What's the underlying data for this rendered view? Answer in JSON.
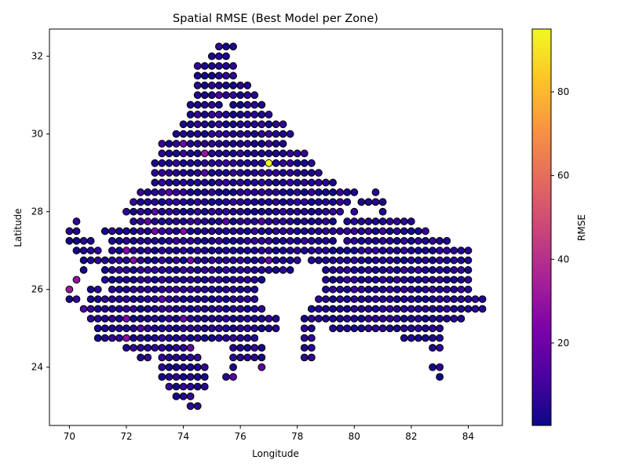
{
  "chart_data": {
    "type": "scatter",
    "title": "Spatial RMSE (Best Model per Zone)",
    "xlabel": "Longitude",
    "ylabel": "Latitude",
    "xlim": [
      69.3,
      85.2
    ],
    "ylim": [
      22.5,
      32.7
    ],
    "xticks": [
      70,
      72,
      74,
      76,
      78,
      80,
      82,
      84
    ],
    "yticks": [
      24,
      26,
      28,
      30,
      32
    ],
    "grid": false,
    "colorbar": {
      "label": "RMSE",
      "colormap": "plasma",
      "range": [
        0.3,
        95
      ],
      "ticks": [
        20,
        40,
        60,
        80
      ]
    },
    "grid_step_degrees": 0.25,
    "rows": [
      {
        "lat": 32.25,
        "segments": [
          [
            75.25,
            75.75
          ]
        ]
      },
      {
        "lat": 32.0,
        "segments": [
          [
            75.0,
            75.5
          ]
        ]
      },
      {
        "lat": 31.75,
        "segments": [
          [
            74.5,
            75.75
          ]
        ]
      },
      {
        "lat": 31.5,
        "segments": [
          [
            74.5,
            75.75
          ]
        ]
      },
      {
        "lat": 31.25,
        "segments": [
          [
            74.5,
            76.25
          ]
        ]
      },
      {
        "lat": 31.0,
        "segments": [
          [
            74.5,
            76.5
          ]
        ]
      },
      {
        "lat": 30.75,
        "segments": [
          [
            74.25,
            75.25
          ],
          [
            75.75,
            76.75
          ]
        ]
      },
      {
        "lat": 30.5,
        "segments": [
          [
            74.25,
            77.0
          ]
        ]
      },
      {
        "lat": 30.25,
        "segments": [
          [
            74.0,
            77.5
          ]
        ]
      },
      {
        "lat": 30.0,
        "segments": [
          [
            73.75,
            77.75
          ]
        ]
      },
      {
        "lat": 29.75,
        "segments": [
          [
            73.25,
            77.5
          ]
        ]
      },
      {
        "lat": 29.5,
        "segments": [
          [
            73.25,
            78.25
          ]
        ]
      },
      {
        "lat": 29.25,
        "segments": [
          [
            73.0,
            78.5
          ]
        ]
      },
      {
        "lat": 29.0,
        "segments": [
          [
            73.0,
            78.75
          ]
        ]
      },
      {
        "lat": 28.75,
        "segments": [
          [
            73.0,
            79.25
          ]
        ]
      },
      {
        "lat": 28.5,
        "segments": [
          [
            72.5,
            80.0
          ],
          [
            80.75,
            80.75
          ]
        ]
      },
      {
        "lat": 28.25,
        "segments": [
          [
            72.25,
            79.75
          ],
          [
            80.25,
            81.0
          ]
        ]
      },
      {
        "lat": 28.0,
        "segments": [
          [
            72.0,
            79.5
          ],
          [
            80.0,
            80.0
          ],
          [
            81.0,
            81.0
          ]
        ]
      },
      {
        "lat": 27.75,
        "segments": [
          [
            70.25,
            70.25
          ],
          [
            72.25,
            79.25
          ],
          [
            79.75,
            82.0
          ]
        ]
      },
      {
        "lat": 27.5,
        "segments": [
          [
            70.0,
            70.25
          ],
          [
            71.25,
            82.5
          ]
        ]
      },
      {
        "lat": 27.25,
        "segments": [
          [
            70.0,
            70.75
          ],
          [
            71.5,
            79.25
          ],
          [
            79.75,
            83.25
          ]
        ]
      },
      {
        "lat": 27.0,
        "segments": [
          [
            70.25,
            71.0
          ],
          [
            71.5,
            84.0
          ]
        ]
      },
      {
        "lat": 26.75,
        "segments": [
          [
            70.5,
            78.0
          ],
          [
            78.5,
            84.0
          ]
        ]
      },
      {
        "lat": 26.5,
        "segments": [
          [
            70.5,
            70.5
          ],
          [
            71.25,
            77.75
          ],
          [
            79.0,
            84.0
          ]
        ]
      },
      {
        "lat": 26.25,
        "segments": [
          [
            70.25,
            70.25
          ],
          [
            71.25,
            76.75
          ],
          [
            79.0,
            84.0
          ]
        ]
      },
      {
        "lat": 26.0,
        "segments": [
          [
            70.0,
            70.0
          ],
          [
            70.75,
            71.0
          ],
          [
            71.5,
            76.5
          ],
          [
            79.0,
            84.0
          ]
        ]
      },
      {
        "lat": 25.75,
        "segments": [
          [
            70.0,
            70.25
          ],
          [
            70.75,
            76.5
          ],
          [
            78.75,
            84.5
          ]
        ]
      },
      {
        "lat": 25.5,
        "segments": [
          [
            70.5,
            76.75
          ],
          [
            78.5,
            84.5
          ]
        ]
      },
      {
        "lat": 25.25,
        "segments": [
          [
            70.75,
            77.25
          ],
          [
            78.25,
            83.75
          ]
        ]
      },
      {
        "lat": 25.0,
        "segments": [
          [
            71.0,
            77.25
          ],
          [
            78.25,
            78.5
          ],
          [
            79.25,
            83.0
          ]
        ]
      },
      {
        "lat": 24.75,
        "segments": [
          [
            71.0,
            74.5
          ],
          [
            74.75,
            76.5
          ],
          [
            78.25,
            78.5
          ],
          [
            81.75,
            83.0
          ]
        ]
      },
      {
        "lat": 24.5,
        "segments": [
          [
            72.0,
            74.25
          ],
          [
            75.75,
            76.75
          ],
          [
            78.25,
            78.5
          ],
          [
            82.75,
            83.0
          ]
        ]
      },
      {
        "lat": 24.25,
        "segments": [
          [
            72.5,
            72.75
          ],
          [
            73.25,
            74.5
          ],
          [
            75.75,
            76.75
          ],
          [
            78.25,
            78.5
          ]
        ]
      },
      {
        "lat": 24.0,
        "segments": [
          [
            73.25,
            74.75
          ],
          [
            75.75,
            75.75
          ],
          [
            76.75,
            76.75
          ],
          [
            82.75,
            83.0
          ]
        ]
      },
      {
        "lat": 23.75,
        "segments": [
          [
            73.25,
            74.75
          ],
          [
            75.5,
            75.75
          ],
          [
            83.0,
            83.0
          ]
        ]
      },
      {
        "lat": 23.5,
        "segments": [
          [
            73.5,
            74.75
          ]
        ]
      },
      {
        "lat": 23.25,
        "segments": [
          [
            73.75,
            74.25
          ]
        ]
      },
      {
        "lat": 23.0,
        "segments": [
          [
            74.25,
            74.5
          ]
        ]
      }
    ],
    "baseline_rmse_range": [
      1,
      8
    ],
    "highlighted_points": [
      {
        "lon": 77.0,
        "lat": 29.25,
        "rmse": 95
      },
      {
        "lon": 74.75,
        "lat": 29.5,
        "rmse": 30
      },
      {
        "lon": 70.0,
        "lat": 26.0,
        "rmse": 32
      },
      {
        "lon": 70.25,
        "lat": 26.25,
        "rmse": 30
      },
      {
        "lon": 72.0,
        "lat": 24.75,
        "rmse": 28
      },
      {
        "lon": 72.0,
        "lat": 27.0,
        "rmse": 26
      },
      {
        "lon": 72.25,
        "lat": 26.75,
        "rmse": 25
      },
      {
        "lon": 72.0,
        "lat": 25.25,
        "rmse": 24
      },
      {
        "lon": 74.0,
        "lat": 27.5,
        "rmse": 24
      },
      {
        "lon": 74.25,
        "lat": 26.75,
        "rmse": 22
      },
      {
        "lon": 74.0,
        "lat": 29.75,
        "rmse": 20
      },
      {
        "lon": 74.0,
        "lat": 25.25,
        "rmse": 20
      },
      {
        "lon": 73.0,
        "lat": 27.5,
        "rmse": 20
      },
      {
        "lon": 74.25,
        "lat": 24.5,
        "rmse": 18
      },
      {
        "lon": 77.0,
        "lat": 26.75,
        "rmse": 18
      },
      {
        "lon": 76.75,
        "lat": 24.0,
        "rmse": 17
      },
      {
        "lon": 72.75,
        "lat": 27.75,
        "rmse": 16
      },
      {
        "lon": 73.0,
        "lat": 28.0,
        "rmse": 16
      },
      {
        "lon": 73.5,
        "lat": 28.5,
        "rmse": 15
      },
      {
        "lon": 75.75,
        "lat": 23.75,
        "rmse": 15
      },
      {
        "lon": 73.25,
        "lat": 25.75,
        "rmse": 15
      },
      {
        "lon": 75.5,
        "lat": 27.75,
        "rmse": 14
      },
      {
        "lon": 74.75,
        "lat": 29.0,
        "rmse": 14
      },
      {
        "lon": 72.5,
        "lat": 25.0,
        "rmse": 13
      },
      {
        "lon": 70.5,
        "lat": 25.5,
        "rmse": 13
      },
      {
        "lon": 75.25,
        "lat": 31.0,
        "rmse": 12
      },
      {
        "lon": 76.75,
        "lat": 27.75,
        "rmse": 12
      }
    ]
  }
}
